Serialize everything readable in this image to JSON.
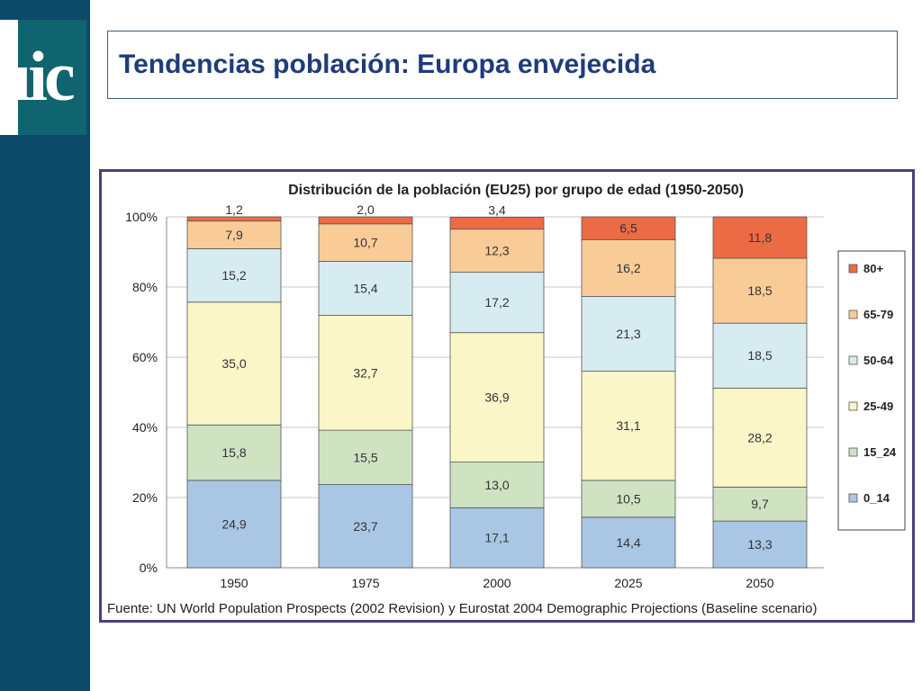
{
  "slide": {
    "logo_text": "uic",
    "title": "Tendencias población: Europa envejecida"
  },
  "chart_data": {
    "type": "bar",
    "stacked": true,
    "title": "Distribución de la población (EU25) por grupo de edad (1950-2050)",
    "categories": [
      "1950",
      "1975",
      "2000",
      "2025",
      "2050"
    ],
    "series": [
      {
        "name": "0_14",
        "color": "#a9c7e4",
        "values": [
          24.9,
          23.7,
          17.1,
          14.4,
          13.3
        ],
        "labels": [
          "24,9",
          "23,7",
          "17,1",
          "14,4",
          "13,3"
        ]
      },
      {
        "name": "15_24",
        "color": "#cfe3c3",
        "values": [
          15.8,
          15.5,
          13.0,
          10.5,
          9.7
        ],
        "labels": [
          "15,8",
          "15,5",
          "13,0",
          "10,5",
          "9,7"
        ]
      },
      {
        "name": "25-49",
        "color": "#fbf6c8",
        "values": [
          35.0,
          32.7,
          36.9,
          31.1,
          28.2
        ],
        "labels": [
          "35,0",
          "32,7",
          "36,9",
          "31,1",
          "28,2"
        ]
      },
      {
        "name": "50-64",
        "color": "#d7ecf1",
        "values": [
          15.2,
          15.4,
          17.2,
          21.3,
          18.5
        ],
        "labels": [
          "15,2",
          "15,4",
          "17,2",
          "21,3",
          "18,5"
        ]
      },
      {
        "name": "65-79",
        "color": "#f9cc97",
        "values": [
          7.9,
          10.7,
          12.3,
          16.2,
          18.5
        ],
        "labels": [
          "7,9",
          "10,7",
          "12,3",
          "16,2",
          "18,5"
        ]
      },
      {
        "name": "80+",
        "color": "#ec6b45",
        "values": [
          1.2,
          2.0,
          3.4,
          6.5,
          11.8
        ],
        "labels": [
          "1,2",
          "2,0",
          "3,4",
          "6,5",
          "11,8"
        ]
      }
    ],
    "y_ticks": [
      "0%",
      "20%",
      "40%",
      "60%",
      "80%",
      "100%"
    ],
    "ylim": [
      0,
      100
    ],
    "grid": true,
    "legend": "right",
    "source": "Fuente: UN World Population Prospects (2002 Revision) y Eurostat 2004 Demographic Projections (Baseline scenario)"
  }
}
